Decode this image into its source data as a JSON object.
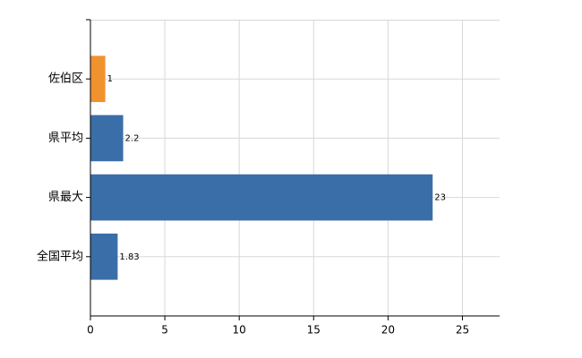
{
  "chart_data": {
    "type": "barh",
    "categories": [
      "佐伯区",
      "県平均",
      "県最大",
      "全国平均"
    ],
    "values": [
      1,
      2.2,
      23,
      1.83
    ],
    "colors": [
      "#f0922e",
      "#3a6ea8",
      "#3a6ea8",
      "#3a6ea8"
    ],
    "xlim": [
      0,
      27.5
    ],
    "xticks": [
      0,
      5,
      10,
      15,
      20,
      25
    ],
    "grid": true
  }
}
